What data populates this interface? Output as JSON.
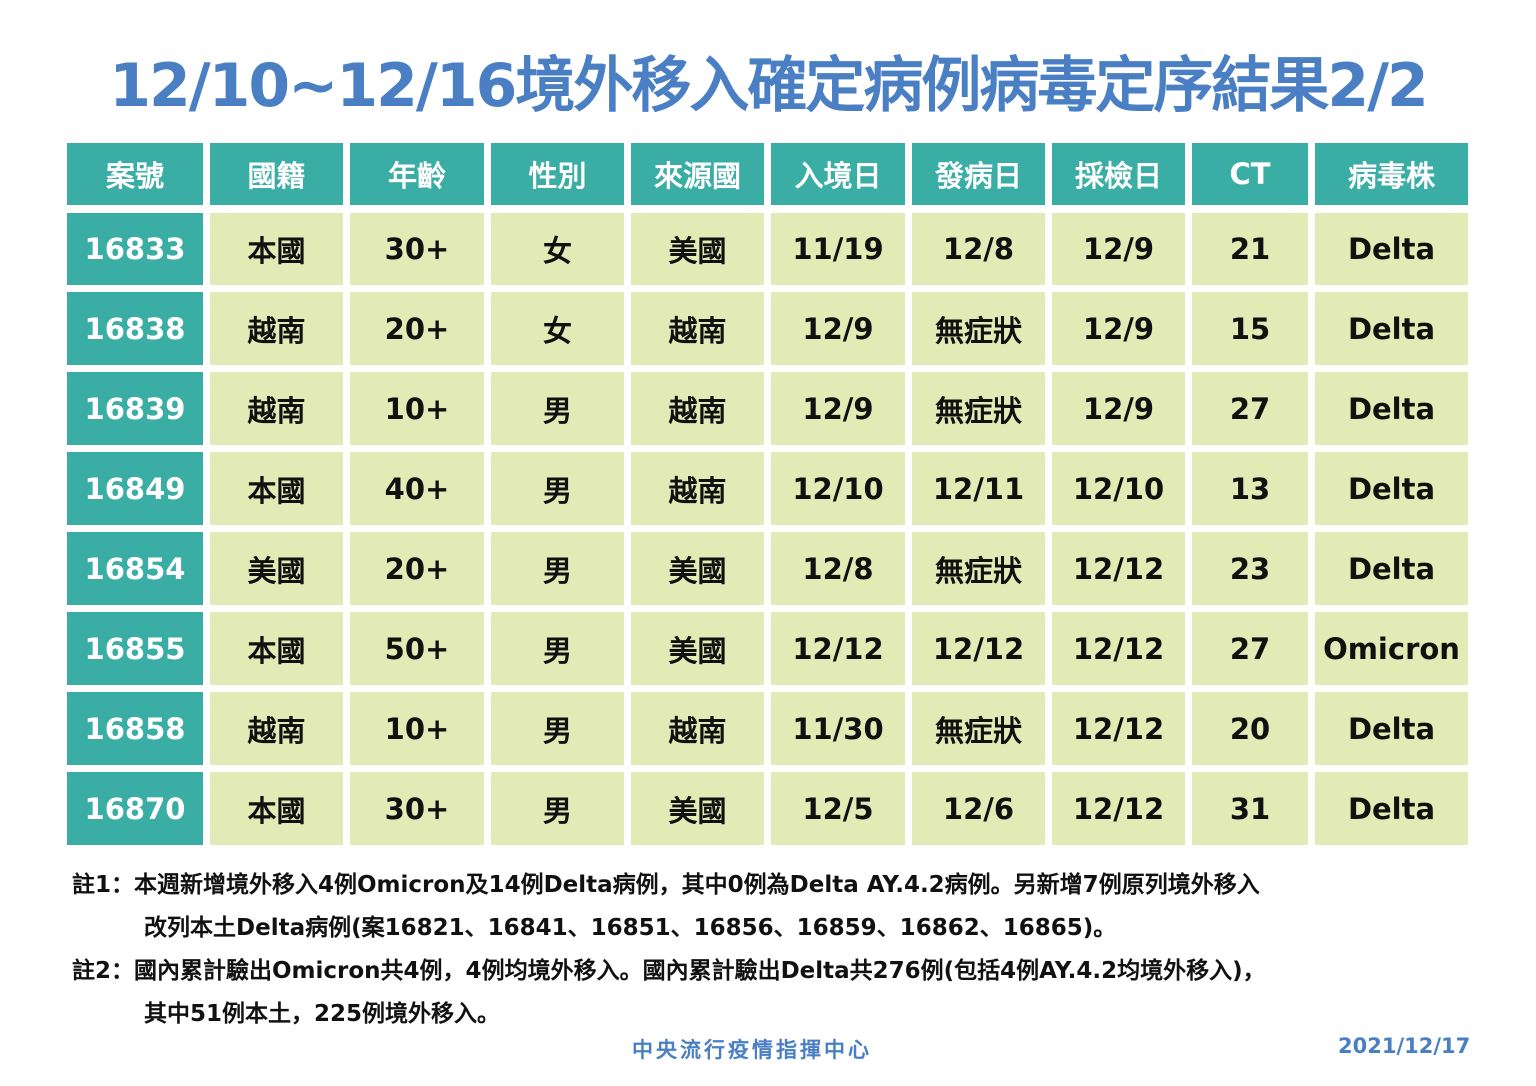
{
  "title": "12/10~12/16境外移入確定病例病毒定序結果2/2",
  "table": {
    "headers": [
      "案號",
      "國籍",
      "年齡",
      "性別",
      "來源國",
      "入境日",
      "發病日",
      "採檢日",
      "CT",
      "病毒株"
    ],
    "rows": [
      [
        "16833",
        "本國",
        "30+",
        "女",
        "美國",
        "11/19",
        "12/8",
        "12/9",
        "21",
        "Delta"
      ],
      [
        "16838",
        "越南",
        "20+",
        "女",
        "越南",
        "12/9",
        "無症狀",
        "12/9",
        "15",
        "Delta"
      ],
      [
        "16839",
        "越南",
        "10+",
        "男",
        "越南",
        "12/9",
        "無症狀",
        "12/9",
        "27",
        "Delta"
      ],
      [
        "16849",
        "本國",
        "40+",
        "男",
        "越南",
        "12/10",
        "12/11",
        "12/10",
        "13",
        "Delta"
      ],
      [
        "16854",
        "美國",
        "20+",
        "男",
        "美國",
        "12/8",
        "無症狀",
        "12/12",
        "23",
        "Delta"
      ],
      [
        "16855",
        "本國",
        "50+",
        "男",
        "美國",
        "12/12",
        "12/12",
        "12/12",
        "27",
        "Omicron"
      ],
      [
        "16858",
        "越南",
        "10+",
        "男",
        "越南",
        "11/30",
        "無症狀",
        "12/12",
        "20",
        "Delta"
      ],
      [
        "16870",
        "本國",
        "30+",
        "男",
        "美國",
        "12/5",
        "12/6",
        "12/12",
        "31",
        "Delta"
      ]
    ]
  },
  "notes": [
    {
      "line1": "註1：本週新增境外移入4例Omicron及14例Delta病例，其中0例為Delta  AY.4.2病例。另新增7例原列境外移入",
      "line2": "改列本土Delta病例(案16821、16841、16851、16856、16859、16862、16865)。"
    },
    {
      "line1": "註2：國內累計驗出Omicron共4例，4例均境外移入。國內累計驗出Delta共276例(包括4例AY.4.2均境外移入)，",
      "line2": "其中51例本土，225例境外移入。"
    }
  ],
  "footer": {
    "org": "中央流行疫情指揮中心",
    "date": "2021/12/17"
  },
  "colors": {
    "title": "#4a7fc4",
    "header": "#3aada5",
    "cell": "#e2eab5"
  }
}
